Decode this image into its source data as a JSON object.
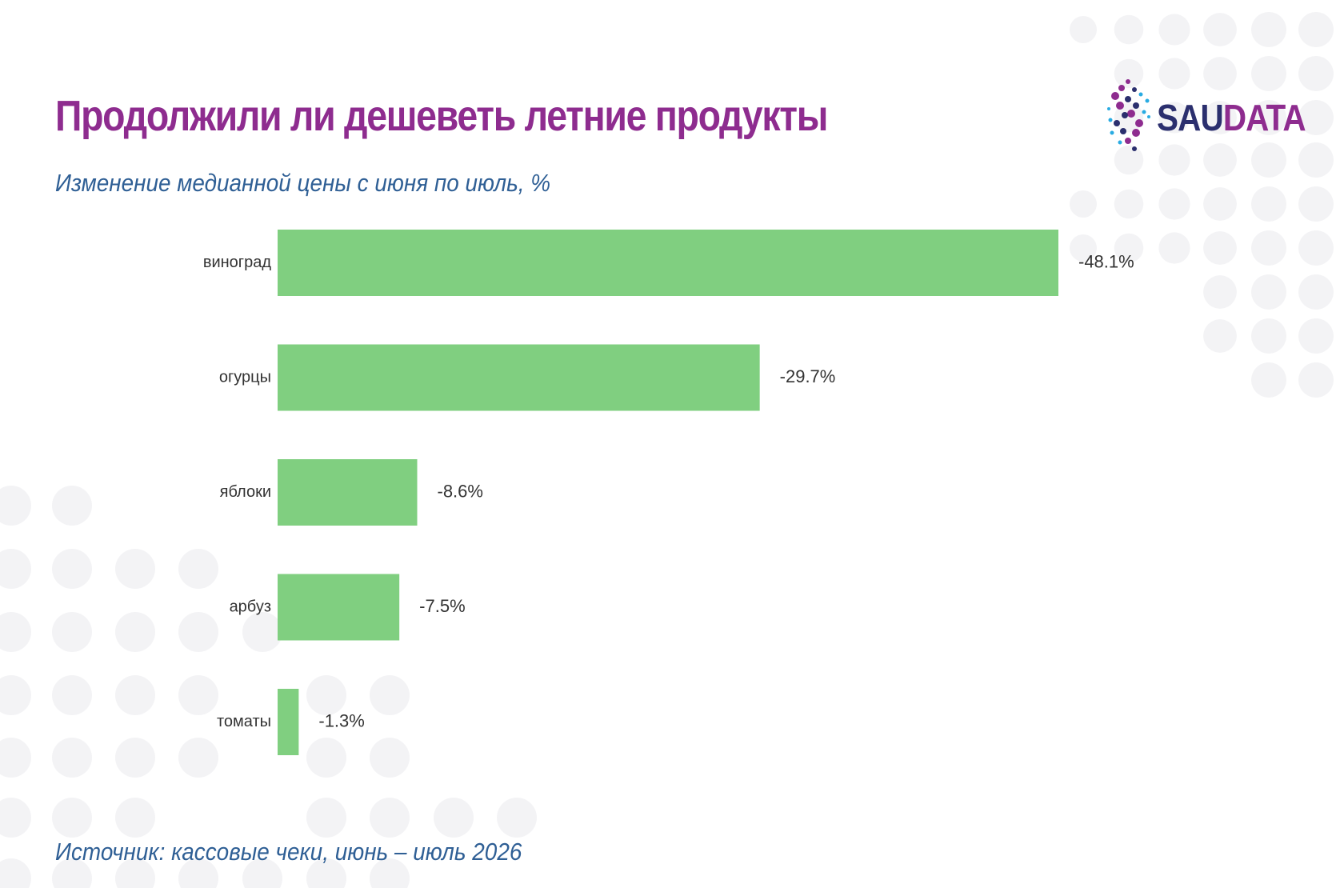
{
  "title": "Продолжили ли дешеветь летние продукты",
  "subtitle": "Изменение медианной цены с июня по июль, %",
  "source": "Источник: кассовые чеки, июнь – июль 2026",
  "logo": {
    "part1": "SAU",
    "part2": "DATA",
    "color1": "#2b2f6e",
    "color2": "#8e2c8f"
  },
  "colors": {
    "bar": "#80cf80",
    "title": "#8e2c8f",
    "subtitle": "#2f5f95",
    "label": "#333333",
    "dots": "#f3f3f5"
  },
  "chart_data": {
    "type": "bar",
    "orientation": "horizontal",
    "categories": [
      "виноград",
      "огурцы",
      "яблоки",
      "арбуз",
      "томаты"
    ],
    "values": [
      -48.1,
      -29.7,
      -8.6,
      -7.5,
      -1.3
    ],
    "value_labels": [
      "-48.1%",
      "-29.7%",
      "-8.6%",
      "-7.5%",
      "-1.3%"
    ],
    "title": "",
    "xlabel": "",
    "ylabel": "",
    "grid": false,
    "legend": "none"
  }
}
